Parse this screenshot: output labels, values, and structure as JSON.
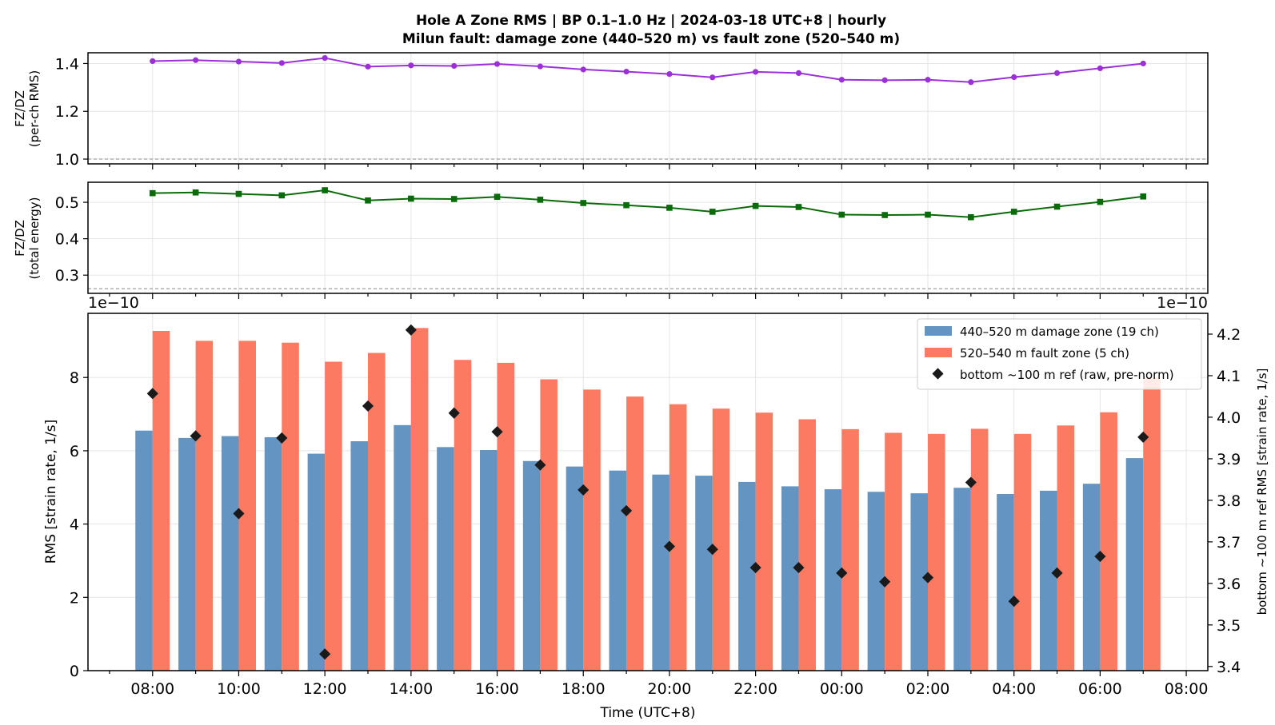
{
  "title_line1": "Hole A Zone RMS  |  BP 0.1–1.0 Hz  |  2024-03-18 UTC+8  |  hourly",
  "title_line2": "Milun fault: damage zone (440–520 m) vs fault zone (520–540 m)",
  "colors": {
    "ratio_rms": "#9b30d9",
    "ratio_energy": "#0a6b0a",
    "damage": "#6494c2",
    "fault": "#fc7a62",
    "ref": "#1a1a1a",
    "grid": "#e6e6e6"
  },
  "chart_data": [
    {
      "type": "line",
      "name": "ratio_rms_panel",
      "ylabel_line1": "FZ/DZ",
      "ylabel_line2": "(per-ch RMS)",
      "ylim": [
        0.98,
        1.445
      ],
      "yticks": [
        1.0,
        1.2,
        1.4
      ],
      "ytick_labels": [
        "1.0",
        "1.2",
        "1.4"
      ],
      "reference_line": 1.0,
      "x_hours": [
        0,
        1,
        2,
        3,
        4,
        5,
        6,
        7,
        8,
        9,
        10,
        11,
        12,
        13,
        14,
        15,
        16,
        17,
        18,
        19,
        20,
        21,
        22,
        23
      ],
      "values": [
        1.41,
        1.414,
        1.408,
        1.402,
        1.423,
        1.387,
        1.392,
        1.39,
        1.398,
        1.388,
        1.375,
        1.366,
        1.356,
        1.342,
        1.365,
        1.36,
        1.332,
        1.33,
        1.332,
        1.322,
        1.343,
        1.36,
        1.38,
        1.4
      ]
    },
    {
      "type": "line",
      "name": "ratio_energy_panel",
      "ylabel_line1": "FZ/DZ",
      "ylabel_line2": "(total energy)",
      "ylim": [
        0.25,
        0.555
      ],
      "yticks": [
        0.3,
        0.4,
        0.5
      ],
      "ytick_labels": [
        "0.3",
        "0.4",
        "0.5"
      ],
      "reference_line": 0.263,
      "x_hours": [
        0,
        1,
        2,
        3,
        4,
        5,
        6,
        7,
        8,
        9,
        10,
        11,
        12,
        13,
        14,
        15,
        16,
        17,
        18,
        19,
        20,
        21,
        22,
        23
      ],
      "values": [
        0.525,
        0.527,
        0.523,
        0.519,
        0.533,
        0.505,
        0.51,
        0.509,
        0.515,
        0.507,
        0.498,
        0.492,
        0.485,
        0.474,
        0.49,
        0.487,
        0.466,
        0.465,
        0.466,
        0.459,
        0.474,
        0.488,
        0.501,
        0.516
      ]
    },
    {
      "type": "bar",
      "name": "rms_panel",
      "xlabel": "Time (UTC+8)",
      "ylabel": "RMS  [strain rate, 1/s]",
      "ylabel_right": "bottom ~100 m ref RMS  [strain rate, 1/s]",
      "offset_left": "1e−10",
      "offset_right": "1e−10",
      "ylim": [
        0,
        9.75
      ],
      "yticks": [
        0,
        2,
        4,
        6,
        8
      ],
      "ytick_labels": [
        "0",
        "2",
        "4",
        "6",
        "8"
      ],
      "ylim_right": [
        3.39,
        4.25
      ],
      "yticks_right": [
        3.4,
        3.5,
        3.6,
        3.7,
        3.8,
        3.9,
        4.0,
        4.1,
        4.2
      ],
      "ytick_labels_right": [
        "3.4",
        "3.5",
        "3.6",
        "3.7",
        "3.8",
        "3.9",
        "4.0",
        "4.1",
        "4.2"
      ],
      "xlim": [
        -1.5,
        24.5
      ],
      "xtick_positions": [
        0,
        2,
        4,
        6,
        8,
        10,
        12,
        14,
        16,
        18,
        20,
        22,
        24
      ],
      "xtick_labels": [
        "08:00",
        "10:00",
        "12:00",
        "14:00",
        "16:00",
        "18:00",
        "20:00",
        "22:00",
        "00:00",
        "02:00",
        "04:00",
        "06:00",
        "08:00"
      ],
      "categories": [
        "08:00",
        "09:00",
        "10:00",
        "11:00",
        "12:00",
        "13:00",
        "14:00",
        "15:00",
        "16:00",
        "17:00",
        "18:00",
        "19:00",
        "20:00",
        "21:00",
        "22:00",
        "23:00",
        "00:00",
        "01:00",
        "02:00",
        "03:00",
        "04:00",
        "05:00",
        "06:00",
        "07:00"
      ],
      "series": [
        {
          "name": "440–520 m  damage zone (19 ch)",
          "kind": "bar",
          "values": [
            6.55,
            6.35,
            6.4,
            6.37,
            5.92,
            6.26,
            6.7,
            6.1,
            6.02,
            5.72,
            5.57,
            5.46,
            5.35,
            5.32,
            5.15,
            5.03,
            4.95,
            4.88,
            4.84,
            4.99,
            4.82,
            4.91,
            5.1,
            5.8
          ]
        },
        {
          "name": "520–540 m  fault zone (5 ch)",
          "kind": "bar",
          "values": [
            9.27,
            9.0,
            9.0,
            8.95,
            8.43,
            8.67,
            9.35,
            8.48,
            8.4,
            7.95,
            7.67,
            7.48,
            7.27,
            7.15,
            7.04,
            6.86,
            6.59,
            6.49,
            6.46,
            6.6,
            6.46,
            6.69,
            7.05,
            8.0
          ]
        },
        {
          "name": "bottom ~100 m ref (raw, pre-norm)",
          "kind": "scatter",
          "axis": "right",
          "values": [
            4.057,
            3.955,
            3.768,
            3.95,
            3.43,
            4.027,
            4.21,
            4.01,
            3.965,
            3.885,
            3.825,
            3.775,
            3.689,
            3.682,
            3.638,
            3.638,
            3.625,
            3.604,
            3.614,
            3.843,
            3.557,
            3.625,
            3.665,
            3.952
          ]
        }
      ],
      "legend_position": "upper right",
      "grid": true
    }
  ]
}
